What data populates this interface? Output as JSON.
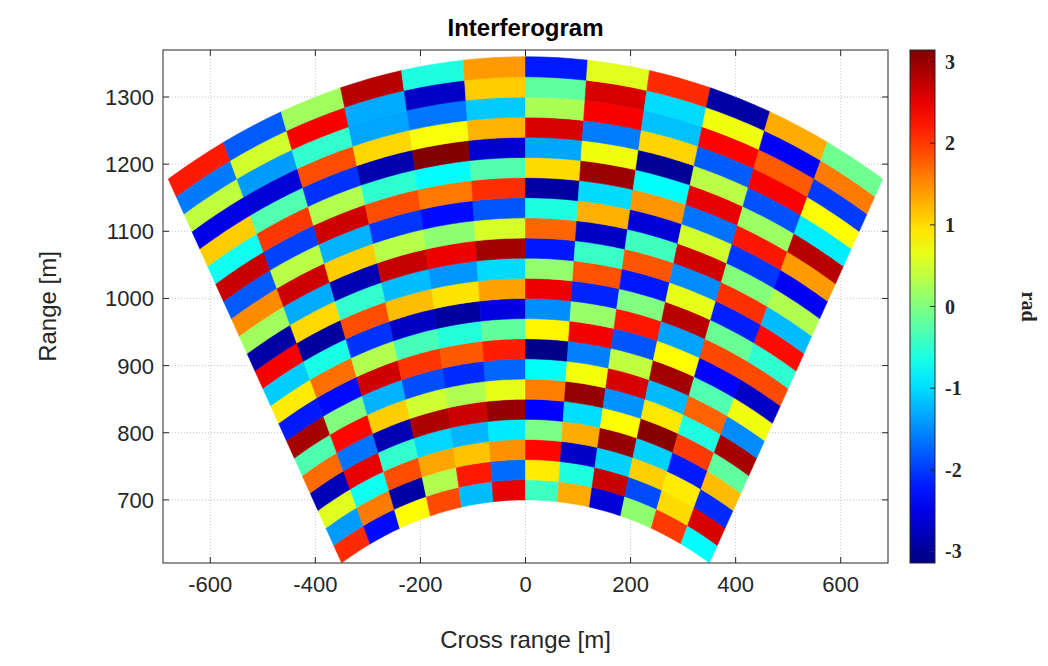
{
  "chart_data": {
    "type": "heatmap",
    "title": "Interferogram",
    "x_label": "Cross range [m]",
    "y_label": "Range [m]",
    "xlim": [
      -690,
      690
    ],
    "xticks": [
      -600,
      -400,
      -200,
      0,
      200,
      400,
      600
    ],
    "ylim": [
      606,
      1370
    ],
    "yticks": [
      700,
      800,
      900,
      1000,
      1100,
      1200,
      1300
    ],
    "grid": true,
    "range_edges": [
      700,
      730,
      760,
      790,
      820,
      850,
      880,
      910,
      940,
      970,
      1000,
      1030,
      1060,
      1090,
      1120,
      1150,
      1180,
      1210,
      1240,
      1270,
      1300,
      1330,
      1360
    ],
    "angle_edges": [
      -30,
      -25,
      -20,
      -15,
      -10,
      -5,
      0,
      5,
      10,
      15,
      20,
      25,
      30
    ],
    "cells": [
      [
        2.1,
        -2.3,
        0.8,
        1.9,
        -1.2,
        2.5,
        -0.4,
        1.3,
        -2.6,
        0.1,
        2.0,
        -0.8
      ],
      [
        -1.4,
        1.6,
        -2.9,
        0.3,
        2.2,
        -1.7,
        0.9,
        -0.6,
        2.7,
        -1.9,
        1.0,
        2.6
      ],
      [
        0.6,
        -0.7,
        1.88,
        1.34,
        1.15,
        1.46,
        2.31,
        -2.7,
        -1.06,
        1.08,
        0.9,
        -2.1
      ],
      [
        -2.8,
        2.5,
        -0.48,
        -1.04,
        -1.23,
        -0.91,
        -0.03,
        1.3,
        3.0,
        -1.06,
        -2.2,
        1.2
      ],
      [
        1.7,
        -1.65,
        -2.83,
        2.87,
        2.67,
        3.01,
        -2.36,
        -0.99,
        0.78,
        3.08,
        2.0,
        -0.2
      ],
      [
        -0.3,
        2.32,
        1.09,
        0.49,
        0.29,
        0.64,
        1.58,
        3.01,
        -1.45,
        0.93,
        -0.6,
        2.9
      ],
      [
        2.9,
        0.01,
        -1.26,
        -1.88,
        -2.09,
        -1.73,
        -0.76,
        0.72,
        2.61,
        -1.21,
        1.75,
        -1.5
      ],
      [
        -2.2,
        -2.3,
        2.66,
        2.03,
        1.81,
        2.18,
        -3.09,
        -1.57,
        0.39,
        2.93,
        -0.29,
        0.7
      ],
      [
        0.9,
        1.67,
        0.31,
        -0.35,
        -0.57,
        -0.18,
        0.85,
        2.43,
        -1.84,
        0.79,
        -2.33,
        -2.7
      ],
      [
        -1.1,
        -0.64,
        -2.05,
        -2.72,
        -2.95,
        -2.55,
        -1.48,
        0.14,
        2.22,
        -1.35,
        1.91,
        1.9
      ],
      [
        2.4,
        -2.95,
        1.88,
        1.19,
        0.95,
        1.36,
        2.46,
        -2.14,
        0.0,
        2.79,
        -0.13,
        -0.5
      ],
      [
        -2.9,
        1.02,
        -0.48,
        -1.19,
        -1.43,
        -1.01,
        0.12,
        1.85,
        -2.22,
        0.64,
        -2.17,
        2.3
      ],
      [
        0.2,
        -1.3,
        -2.83,
        2.72,
        2.47,
        2.91,
        -2.21,
        -0.44,
        1.83,
        -1.5,
        2.06,
        -1.2
      ],
      [
        1.5,
        2.67,
        1.09,
        0.34,
        0.09,
        0.54,
        1.73,
        -2.72,
        -0.39,
        2.64,
        0.02,
        0.3
      ],
      [
        -1.8,
        0.36,
        -1.26,
        -2.03,
        -2.29,
        -1.83,
        -0.6,
        1.27,
        -2.61,
        0.5,
        -2.02,
        -2.4
      ],
      [
        2.7,
        -1.95,
        2.66,
        1.88,
        1.61,
        2.08,
        -2.94,
        -1.01,
        1.44,
        -1.64,
        2.22,
        1.4
      ],
      [
        -0.7,
        2.02,
        0.31,
        -0.5,
        -0.77,
        -0.28,
        1.0,
        2.98,
        -0.78,
        2.5,
        0.18,
        2.8
      ],
      [
        1.1,
        -0.29,
        -2.05,
        -2.87,
        3.13,
        -2.65,
        -1.33,
        0.7,
        -3.0,
        0.36,
        -1.86,
        -0.9
      ],
      [
        -2.5,
        -2.6,
        1.88,
        1.03,
        0.75,
        1.26,
        2.61,
        -1.59,
        1.05,
        -1.79,
        2.38,
        0.8
      ],
      [
        0.4,
        -1.4,
        -0.48,
        -1.34,
        -1.63,
        -1.11,
        0.27,
        2.4,
        -1.17,
        2.35,
        1.8,
        -2.0
      ],
      [
        -1.6,
        0.5,
        2.4,
        -1.3,
        -2.7,
        1.1,
        -0.2,
        2.6,
        -1.0,
        0.7,
        -2.4,
        1.6
      ],
      [
        2.2,
        -1.8,
        0.2,
        2.8,
        -0.6,
        1.4,
        -2.2,
        0.6,
        2.1,
        -2.9,
        1.3,
        -0.1
      ]
    ],
    "colorbar": {
      "label": "rad",
      "lim": [
        -3.1416,
        3.1416
      ],
      "ticks": [
        -3,
        -2,
        -1,
        0,
        1,
        2,
        3
      ]
    }
  }
}
